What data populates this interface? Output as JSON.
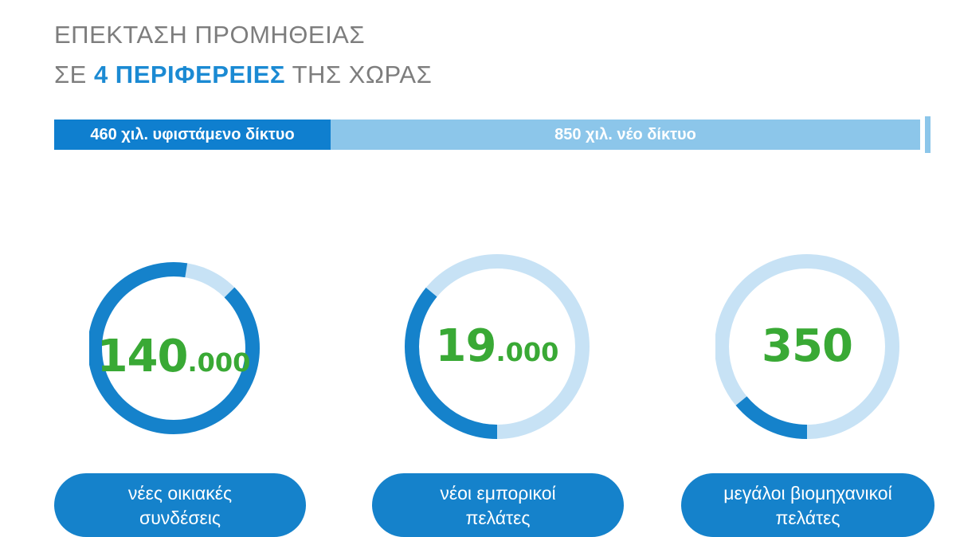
{
  "header": {
    "line1": "ΕΠΕΚΤΑΣΗ ΠΡΟΜΗΘΕΙΑΣ",
    "line2_pre": "ΣΕ ",
    "line2_highlight": "4 ΠΕΡΙΦΕΡΕΙΕΣ",
    "line2_post": " ΤΗΣ ΧΩΡΑΣ"
  },
  "network_bar": {
    "existing_label": "460 χιλ. υφιστάμενο δίκτυο",
    "new_label": "850 χιλ. νέο δίκτυο",
    "existing_color": "#0f7fcf",
    "new_color": "#8cc6ea"
  },
  "colors": {
    "ring_dark": "#1582cb",
    "ring_light": "#c7e2f5",
    "number": "#39a935",
    "pill": "#1582cb"
  },
  "metrics": [
    {
      "value_big": "140",
      "value_small": ".000",
      "label_line1": "νέες οικιακές",
      "label_line2": "συνδέσεις",
      "fill_fraction": 0.9
    },
    {
      "value_big": "19",
      "value_small": ".000",
      "label_line1": "νέοι εμπορικοί",
      "label_line2": "πελάτες",
      "fill_fraction": 0.36
    },
    {
      "value_big": "350",
      "value_small": "",
      "label_line1": "μεγάλοι βιομηχανικοί",
      "label_line2": "πελάτες",
      "fill_fraction": 0.14
    }
  ]
}
